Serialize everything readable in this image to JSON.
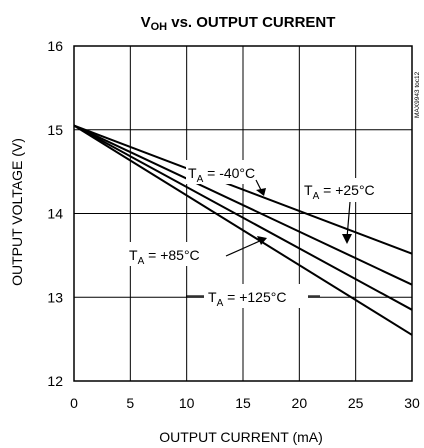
{
  "chart_data": {
    "type": "line",
    "title": {
      "main": "V",
      "sub": "OH",
      "rest": " vs. OUTPUT CURRENT"
    },
    "xlabel": "OUTPUT CURRENT (mA)",
    "ylabel": "OUTPUT VOLTAGE (V)",
    "xlim": [
      0,
      30
    ],
    "ylim": [
      12,
      16
    ],
    "xticks": [
      "0",
      "5",
      "10",
      "15",
      "20",
      "25",
      "30"
    ],
    "yticks": [
      "12",
      "13",
      "14",
      "15",
      "16"
    ],
    "grid": true,
    "watermark": "MAX9943 toc12",
    "series": [
      {
        "name": "T_A = -40°C",
        "x": [
          0,
          30
        ],
        "y": [
          15.05,
          13.52
        ]
      },
      {
        "name": "T_A = +25°C",
        "x": [
          0,
          30
        ],
        "y": [
          15.05,
          13.15
        ]
      },
      {
        "name": "T_A = +85°C",
        "x": [
          0,
          30
        ],
        "y": [
          15.05,
          12.85
        ]
      },
      {
        "name": "T_A = +125°C",
        "x": [
          0,
          30
        ],
        "y": [
          15.05,
          12.55
        ]
      }
    ],
    "annotations": [
      {
        "base": "T",
        "sub": "A",
        "rest": " = -40°C"
      },
      {
        "base": "T",
        "sub": "A",
        "rest": " = +25°C"
      },
      {
        "base": "T",
        "sub": "A",
        "rest": " = +85°C"
      },
      {
        "base": "T",
        "sub": "A",
        "rest": " = +125°C"
      }
    ]
  }
}
